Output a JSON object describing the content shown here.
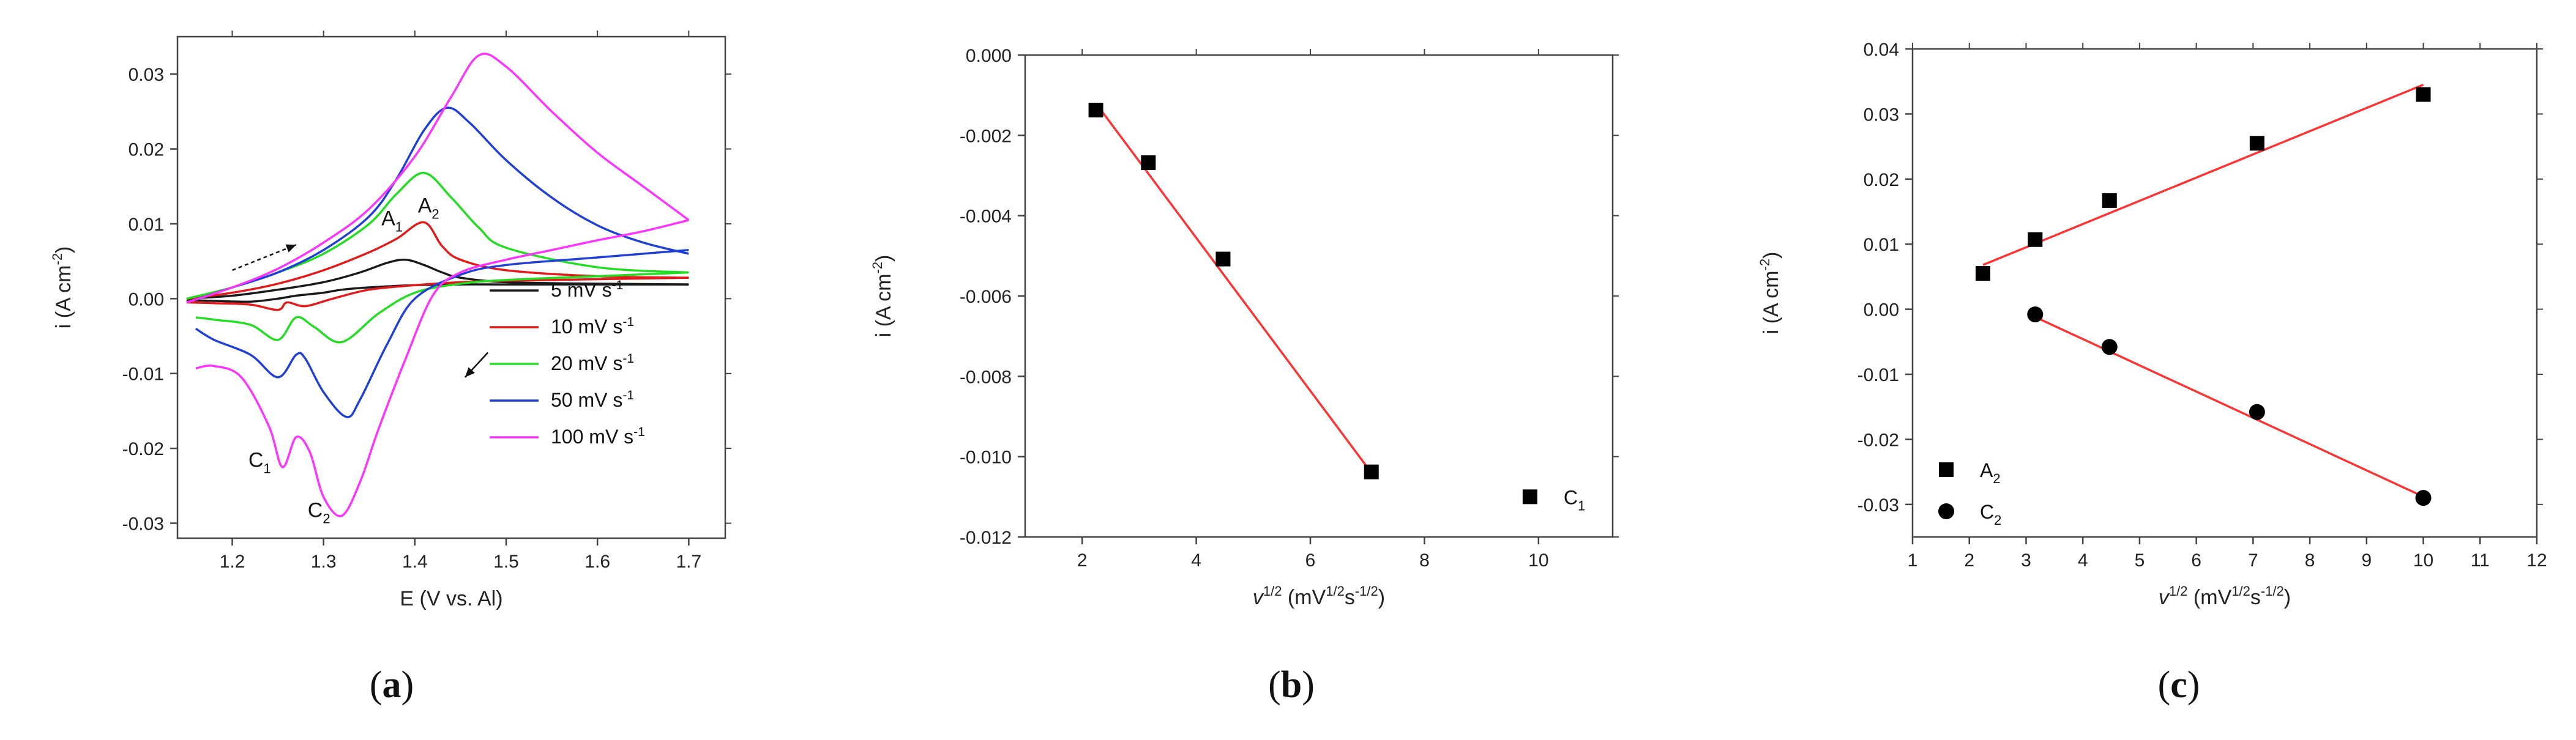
{
  "chart_data": [
    {
      "id": "a",
      "type": "line",
      "panel_label": {
        "open": "(",
        "letter": "a",
        "close": ")"
      },
      "xlabel": "E (V vs. Al)",
      "ylabel": {
        "base": "i (A cm",
        "sup": "-2",
        "end": ")"
      },
      "xlim": [
        1.14,
        1.74
      ],
      "ylim": [
        -0.032,
        0.035
      ],
      "xticks": [
        1.2,
        1.3,
        1.4,
        1.5,
        1.6,
        1.7
      ],
      "xtick_labels": [
        "1.2",
        "1.3",
        "1.4",
        "1.5",
        "1.6",
        "1.7"
      ],
      "yticks": [
        -0.03,
        -0.02,
        -0.01,
        0.0,
        0.01,
        0.02,
        0.03
      ],
      "ytick_labels": [
        "-0.03",
        "-0.02",
        "-0.01",
        "0.00",
        "0.01",
        "0.02",
        "0.03"
      ],
      "legend_position": "bottom-right",
      "series": [
        {
          "name_base": "5 mV s",
          "name_sup": "-1",
          "color": "#1a1a1a",
          "forward": [
            [
              1.15,
              0.0
            ],
            [
              1.2,
              0.0004
            ],
            [
              1.25,
              0.0012
            ],
            [
              1.3,
              0.0022
            ],
            [
              1.34,
              0.0035
            ],
            [
              1.37,
              0.0048
            ],
            [
              1.39,
              0.0052
            ],
            [
              1.41,
              0.0045
            ],
            [
              1.43,
              0.0035
            ],
            [
              1.45,
              0.0028
            ],
            [
              1.5,
              0.0022
            ],
            [
              1.6,
              0.002
            ],
            [
              1.7,
              0.0019
            ]
          ],
          "reverse": [
            [
              1.7,
              0.0019
            ],
            [
              1.6,
              0.0019
            ],
            [
              1.5,
              0.0019
            ],
            [
              1.45,
              0.0019
            ],
            [
              1.4,
              0.0018
            ],
            [
              1.35,
              0.0015
            ],
            [
              1.32,
              0.0012
            ],
            [
              1.3,
              0.0008
            ],
            [
              1.27,
              0.0004
            ],
            [
              1.25,
              0.0
            ],
            [
              1.22,
              -0.0004
            ],
            [
              1.18,
              -0.0003
            ],
            [
              1.15,
              -0.0002
            ]
          ]
        },
        {
          "name_base": "10 mV s",
          "name_sup": "-1",
          "color": "#e31a1c",
          "forward": [
            [
              1.15,
              0.0
            ],
            [
              1.2,
              0.0008
            ],
            [
              1.25,
              0.002
            ],
            [
              1.3,
              0.0038
            ],
            [
              1.35,
              0.0062
            ],
            [
              1.38,
              0.008
            ],
            [
              1.41,
              0.0102
            ],
            [
              1.43,
              0.007
            ],
            [
              1.45,
              0.0052
            ],
            [
              1.5,
              0.0038
            ],
            [
              1.6,
              0.003
            ],
            [
              1.7,
              0.0028
            ]
          ],
          "reverse": [
            [
              1.7,
              0.0028
            ],
            [
              1.6,
              0.0026
            ],
            [
              1.5,
              0.0024
            ],
            [
              1.45,
              0.0022
            ],
            [
              1.4,
              0.0018
            ],
            [
              1.35,
              0.0012
            ],
            [
              1.31,
              0.0
            ],
            [
              1.28,
              -0.001
            ],
            [
              1.26,
              -0.0005
            ],
            [
              1.25,
              -0.0015
            ],
            [
              1.22,
              -0.0008
            ],
            [
              1.18,
              -0.0006
            ],
            [
              1.15,
              -0.0005
            ]
          ]
        },
        {
          "name_base": "20 mV s",
          "name_sup": "-1",
          "color": "#22dd22",
          "forward": [
            [
              1.15,
              0.0
            ],
            [
              1.2,
              0.0015
            ],
            [
              1.25,
              0.0035
            ],
            [
              1.3,
              0.006
            ],
            [
              1.35,
              0.01
            ],
            [
              1.38,
              0.014
            ],
            [
              1.41,
              0.0168
            ],
            [
              1.44,
              0.0135
            ],
            [
              1.47,
              0.0095
            ],
            [
              1.5,
              0.0068
            ],
            [
              1.6,
              0.0042
            ],
            [
              1.7,
              0.0035
            ]
          ],
          "reverse": [
            [
              1.7,
              0.0035
            ],
            [
              1.6,
              0.003
            ],
            [
              1.5,
              0.0025
            ],
            [
              1.45,
              0.002
            ],
            [
              1.4,
              0.0008
            ],
            [
              1.36,
              -0.002
            ],
            [
              1.32,
              -0.0058
            ],
            [
              1.29,
              -0.0038
            ],
            [
              1.27,
              -0.0025
            ],
            [
              1.25,
              -0.0055
            ],
            [
              1.22,
              -0.0035
            ],
            [
              1.18,
              -0.0028
            ],
            [
              1.16,
              -0.0025
            ]
          ]
        },
        {
          "name_base": "50 mV s",
          "name_sup": "-1",
          "color": "#1f3fd6",
          "forward": [
            [
              1.15,
              -0.0005
            ],
            [
              1.2,
              0.0015
            ],
            [
              1.25,
              0.0035
            ],
            [
              1.3,
              0.0065
            ],
            [
              1.35,
              0.011
            ],
            [
              1.38,
              0.016
            ],
            [
              1.41,
              0.0225
            ],
            [
              1.435,
              0.0255
            ],
            [
              1.46,
              0.0235
            ],
            [
              1.5,
              0.0185
            ],
            [
              1.55,
              0.0135
            ],
            [
              1.6,
              0.0098
            ],
            [
              1.65,
              0.0075
            ],
            [
              1.7,
              0.006
            ]
          ],
          "reverse": [
            [
              1.7,
              0.0065
            ],
            [
              1.6,
              0.0055
            ],
            [
              1.5,
              0.0045
            ],
            [
              1.45,
              0.0032
            ],
            [
              1.4,
              0.0
            ],
            [
              1.37,
              -0.006
            ],
            [
              1.34,
              -0.0135
            ],
            [
              1.325,
              -0.0158
            ],
            [
              1.3,
              -0.0125
            ],
            [
              1.28,
              -0.008
            ],
            [
              1.27,
              -0.0075
            ],
            [
              1.25,
              -0.0105
            ],
            [
              1.22,
              -0.0075
            ],
            [
              1.18,
              -0.0055
            ],
            [
              1.16,
              -0.004
            ]
          ]
        },
        {
          "name_base": "100 mV s",
          "name_sup": "-1",
          "color": "#ff33ff",
          "forward": [
            [
              1.15,
              -0.0005
            ],
            [
              1.2,
              0.0015
            ],
            [
              1.25,
              0.004
            ],
            [
              1.3,
              0.0075
            ],
            [
              1.35,
              0.012
            ],
            [
              1.4,
              0.019
            ],
            [
              1.44,
              0.027
            ],
            [
              1.47,
              0.0325
            ],
            [
              1.5,
              0.031
            ],
            [
              1.55,
              0.025
            ],
            [
              1.6,
              0.0195
            ],
            [
              1.65,
              0.015
            ],
            [
              1.7,
              0.0105
            ]
          ],
          "reverse": [
            [
              1.7,
              0.0105
            ],
            [
              1.65,
              0.009
            ],
            [
              1.6,
              0.0078
            ],
            [
              1.55,
              0.0065
            ],
            [
              1.5,
              0.0052
            ],
            [
              1.45,
              0.0035
            ],
            [
              1.42,
              0.0005
            ],
            [
              1.39,
              -0.008
            ],
            [
              1.36,
              -0.0175
            ],
            [
              1.34,
              -0.0245
            ],
            [
              1.32,
              -0.029
            ],
            [
              1.3,
              -0.0265
            ],
            [
              1.285,
              -0.0205
            ],
            [
              1.27,
              -0.0185
            ],
            [
              1.255,
              -0.0225
            ],
            [
              1.24,
              -0.017
            ],
            [
              1.21,
              -0.0105
            ],
            [
              1.18,
              -0.009
            ],
            [
              1.16,
              -0.0093
            ]
          ]
        }
      ],
      "annotations": [
        {
          "base": "A",
          "sub": "1",
          "x": 1.375,
          "y": 0.0098
        },
        {
          "base": "A",
          "sub": "2",
          "x": 1.415,
          "y": 0.0115
        },
        {
          "base": "C",
          "sub": "1",
          "x": 1.23,
          "y": -0.0225
        },
        {
          "base": "C",
          "sub": "2",
          "x": 1.295,
          "y": -0.0292
        }
      ],
      "arrows": [
        {
          "from": [
            1.2,
            0.0038
          ],
          "to": [
            1.27,
            0.0072
          ],
          "style": "dashed"
        },
        {
          "from": [
            1.48,
            -0.0072
          ],
          "to": [
            1.455,
            -0.0105
          ],
          "style": "solid"
        }
      ]
    },
    {
      "id": "b",
      "type": "scatter",
      "panel_label": {
        "open": "(",
        "letter": "b",
        "close": ")"
      },
      "xlabel": {
        "v": "v",
        "vsup": "1/2",
        "mid": " (mV",
        "sup1": "1/2",
        "s": "s",
        "sup2": "-1/2",
        "end": ")"
      },
      "ylabel": {
        "base": "i (A cm",
        "sup": "-2",
        "end": ")"
      },
      "xlim": [
        1.0,
        11.3
      ],
      "ylim": [
        -0.012,
        0.0
      ],
      "xticks": [
        2,
        4,
        6,
        8,
        10
      ],
      "xtick_labels": [
        "2",
        "4",
        "6",
        "8",
        "10"
      ],
      "yticks": [
        0.0,
        -0.002,
        -0.004,
        -0.006,
        -0.008,
        -0.01,
        -0.012
      ],
      "ytick_labels": [
        "0.000",
        "-0.002",
        "-0.004",
        "-0.006",
        "-0.008",
        "-0.010",
        "-0.012"
      ],
      "legend_position": "bottom-right",
      "series": [
        {
          "name_base": "C",
          "name_sub": "1",
          "marker": "square",
          "color": "#000000",
          "x": [
            2.24,
            3.16,
            4.47,
            7.07
          ],
          "y": [
            -0.00137,
            -0.00268,
            -0.00508,
            -0.01038
          ]
        }
      ],
      "fit_lines": [
        {
          "color": "#ff3333",
          "from": [
            2.24,
            -0.0012
          ],
          "to": [
            7.07,
            -0.0104
          ]
        }
      ]
    },
    {
      "id": "c",
      "type": "scatter",
      "panel_label": {
        "open": "(",
        "letter": "c",
        "close": ")"
      },
      "xlabel": {
        "v": "v",
        "vsup": "1/2",
        "mid": " (mV",
        "sup1": "1/2",
        "s": "s",
        "sup2": "-1/2",
        "end": ")"
      },
      "ylabel": {
        "base": "i (A cm",
        "sup": "-2",
        "end": ")"
      },
      "xlim": [
        1,
        12
      ],
      "ylim": [
        -0.035,
        0.04
      ],
      "xticks": [
        1,
        2,
        3,
        4,
        5,
        6,
        7,
        8,
        9,
        10,
        11,
        12
      ],
      "xtick_labels": [
        "1",
        "2",
        "3",
        "4",
        "5",
        "6",
        "7",
        "8",
        "9",
        "10",
        "11",
        "12"
      ],
      "yticks": [
        -0.03,
        -0.02,
        -0.01,
        0.0,
        0.01,
        0.02,
        0.03,
        0.04
      ],
      "ytick_labels": [
        "-0.03",
        "-0.02",
        "-0.01",
        "0.00",
        "0.01",
        "0.02",
        "0.03",
        "0.04"
      ],
      "legend_position": "bottom-left",
      "series": [
        {
          "name_base": "A",
          "name_sub": "2",
          "marker": "square",
          "color": "#000000",
          "x": [
            2.24,
            3.16,
            4.47,
            7.07,
            10.0
          ],
          "y": [
            0.0055,
            0.0107,
            0.0167,
            0.0255,
            0.033
          ]
        },
        {
          "name_base": "C",
          "name_sub": "2",
          "marker": "circle",
          "color": "#000000",
          "x": [
            3.16,
            4.47,
            7.07,
            10.0
          ],
          "y": [
            -0.0008,
            -0.0058,
            -0.0158,
            -0.029
          ]
        }
      ],
      "fit_lines": [
        {
          "color": "#ff3333",
          "from": [
            2.24,
            0.0068
          ],
          "to": [
            10.0,
            0.0345
          ]
        },
        {
          "color": "#ff3333",
          "from": [
            3.16,
            -0.0012
          ],
          "to": [
            10.0,
            -0.0288
          ]
        }
      ]
    }
  ]
}
